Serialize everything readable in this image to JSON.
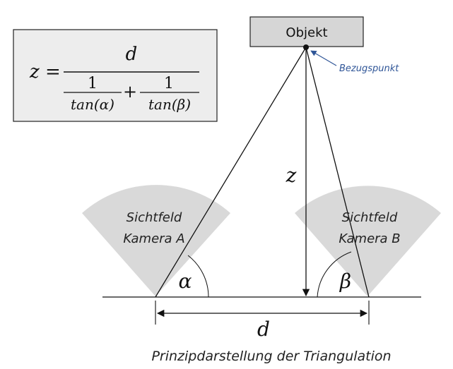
{
  "formula": {
    "lhs": "z =",
    "numerator": "d",
    "denom_left_num": "1",
    "denom_left_den": "tan(α)",
    "plus": "+",
    "denom_right_num": "1",
    "denom_right_den": "tan(β)"
  },
  "object_label": "Objekt",
  "reference_point_label": "Bezugspunkt",
  "camera_a": {
    "line1": "Sichtfeld",
    "line2": "Kamera A"
  },
  "camera_b": {
    "line1": "Sichtfeld",
    "line2": "Kamera B"
  },
  "angle_alpha": "α",
  "angle_beta": "β",
  "height_label": "z",
  "baseline_label": "d",
  "caption": "Prinzipdarstellung der Triangulation",
  "colors": {
    "box_fill": "#ededed",
    "fov_fill": "#d9d9d9",
    "object_fill": "#d6d6d6",
    "accent_blue": "#2f5597",
    "line": "#111111"
  }
}
